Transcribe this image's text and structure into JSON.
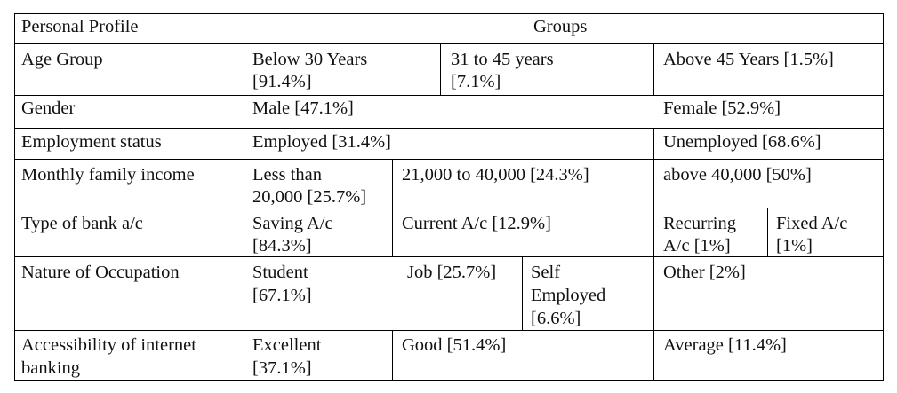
{
  "table": {
    "header": {
      "profile": "Personal Profile",
      "groups": "Groups"
    },
    "rows": {
      "age": {
        "label": "Age Group",
        "c1a": "Below 30 Years",
        "c1b": "[91.4%]",
        "c2a": "31 to 45 years",
        "c2b": "[7.1%]",
        "c3": "Above 45 Years [1.5%]"
      },
      "gender": {
        "label": "Gender",
        "c1": "Male [47.1%]",
        "c3": "Female [52.9%]"
      },
      "employment": {
        "label": "Employment status",
        "c1": "Employed [31.4%]",
        "c3": "Unemployed [68.6%]"
      },
      "income": {
        "label": "Monthly family income",
        "c1a": "Less than",
        "c1b": "20,000 [25.7%]",
        "c2": "21,000 to 40,000 [24.3%]",
        "c3": "above 40,000 [50%]"
      },
      "bank": {
        "label": "Type of bank a/c",
        "c1a": "Saving A/c",
        "c1b": "[84.3%]",
        "c2": "Current A/c [12.9%]",
        "c3a": "Recurring",
        "c3b": "A/c [1%]",
        "c4a": "Fixed A/c",
        "c4b": "[1%]"
      },
      "occupation": {
        "label": "Nature of Occupation",
        "c1a": "Student",
        "c1b": "[67.1%]",
        "c2": "Job [25.7%]",
        "c3a": "Self",
        "c3b": "Employed",
        "c3c": "[6.6%]",
        "c4": "Other [2%]"
      },
      "internet": {
        "label_a": "Accessibility of internet",
        "label_b": "banking",
        "c1a": "Excellent",
        "c1b": "[37.1%]",
        "c2": "Good [51.4%]",
        "c3": "Average [11.4%]"
      }
    }
  }
}
